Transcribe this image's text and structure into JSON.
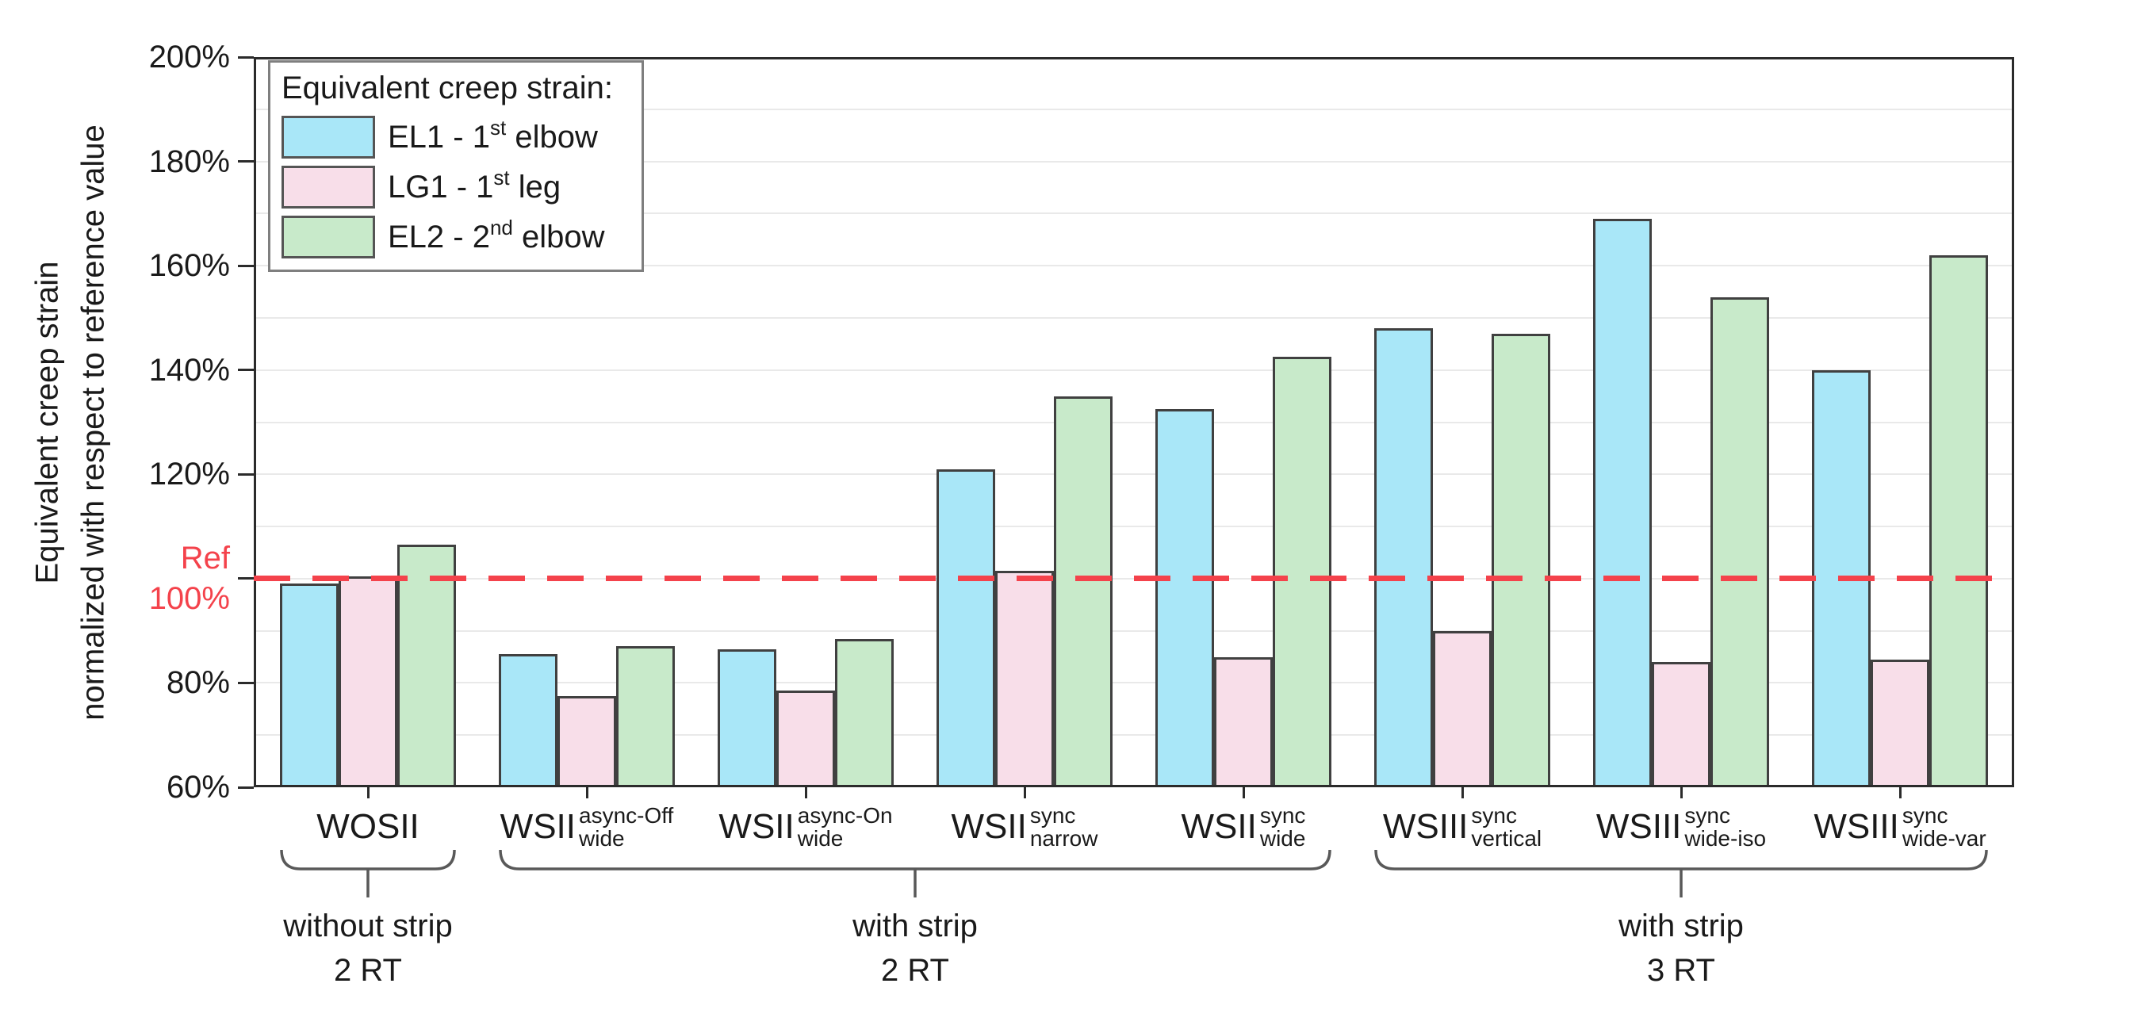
{
  "chart_data": {
    "type": "bar",
    "title": "",
    "ylabel_lines": [
      "Equivalent creep strain",
      "normalized with respect to reference value"
    ],
    "ylim": [
      60,
      200
    ],
    "y_major_ticks": [
      200,
      180,
      160,
      140,
      120,
      100,
      80,
      60
    ],
    "y_tick_suffix": "%",
    "y_minor_grid_step": 10,
    "grid": true,
    "reference_line": {
      "value": 100,
      "label_lines": [
        "Ref",
        "100%"
      ],
      "color": "#f4424b",
      "style": "dashed"
    },
    "legend": {
      "position": "top-left",
      "title": "Equivalent creep strain:",
      "entries": [
        {
          "text": "EL1 - 1",
          "sup": "st",
          "after": " elbow",
          "color": "#a9e7f8"
        },
        {
          "text": "LG1 - 1",
          "sup": "st",
          "after": " leg",
          "color": "#f8dee9"
        },
        {
          "text": "EL2 - 2",
          "sup": "nd",
          "after": " elbow",
          "color": "#c8eaca"
        }
      ]
    },
    "categories": [
      {
        "base": "WOSII",
        "sup": "",
        "sub": ""
      },
      {
        "base": "WSII",
        "sup": "async-Off",
        "sub": "wide"
      },
      {
        "base": "WSII",
        "sup": "async-On",
        "sub": "wide"
      },
      {
        "base": "WSII",
        "sup": "sync",
        "sub": "narrow"
      },
      {
        "base": "WSII",
        "sup": "sync",
        "sub": "wide"
      },
      {
        "base": "WSIII",
        "sup": "sync",
        "sub": "vertical"
      },
      {
        "base": "WSIII",
        "sup": "sync",
        "sub": "wide-iso"
      },
      {
        "base": "WSIII",
        "sup": "sync",
        "sub": "wide-var"
      }
    ],
    "series": [
      {
        "name": "EL1 - 1st elbow",
        "color": "#a9e7f8",
        "values": [
          99,
          85.5,
          86.5,
          121,
          132.5,
          148,
          169,
          140
        ]
      },
      {
        "name": "LG1 - 1st leg",
        "color": "#f8dee9",
        "values": [
          100.5,
          77.5,
          78.5,
          101.5,
          85,
          90,
          84,
          84.5
        ]
      },
      {
        "name": "EL2 - 2nd elbow",
        "color": "#c8eaca",
        "values": [
          106.5,
          87,
          88.5,
          135,
          142.5,
          147,
          154,
          162
        ]
      }
    ],
    "group_annotations": [
      {
        "span": [
          0,
          0
        ],
        "lines": [
          "without strip",
          "2 RT"
        ]
      },
      {
        "span": [
          1,
          4
        ],
        "lines": [
          "with strip",
          "2 RT"
        ]
      },
      {
        "span": [
          5,
          7
        ],
        "lines": [
          "with strip",
          "3 RT"
        ]
      }
    ],
    "colors": {
      "bar_border": "#404040",
      "axis": "#2b2b2b",
      "grid": "#e9e9e9",
      "brace": "#595959",
      "reference": "#f4424b"
    }
  }
}
